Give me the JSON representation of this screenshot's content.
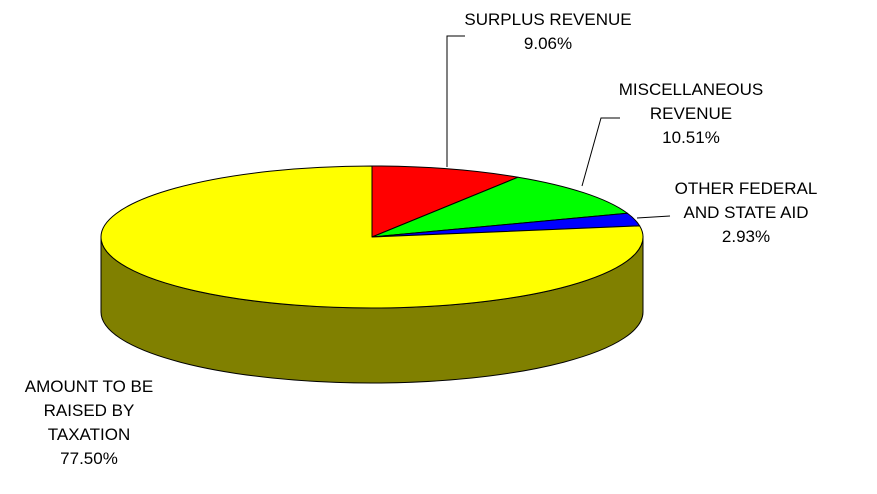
{
  "chart_data": {
    "type": "pie",
    "style": "3d",
    "title": "",
    "slices": [
      {
        "label_lines": [
          "SURPLUS REVENUE"
        ],
        "percent_label": "9.06%",
        "value": 9.06,
        "color": "#ff0000"
      },
      {
        "label_lines": [
          "MISCELLANEOUS",
          "REVENUE"
        ],
        "percent_label": "10.51%",
        "value": 10.51,
        "color": "#00ff00"
      },
      {
        "label_lines": [
          "OTHER FEDERAL",
          "AND STATE AID"
        ],
        "percent_label": "2.93%",
        "value": 2.93,
        "color": "#0000ff"
      },
      {
        "label_lines": [
          "AMOUNT TO BE",
          "RAISED BY",
          "TAXATION"
        ],
        "percent_label": "77.50%",
        "value": 77.5,
        "color": "#ffff00",
        "side_color": "#808000"
      }
    ]
  }
}
